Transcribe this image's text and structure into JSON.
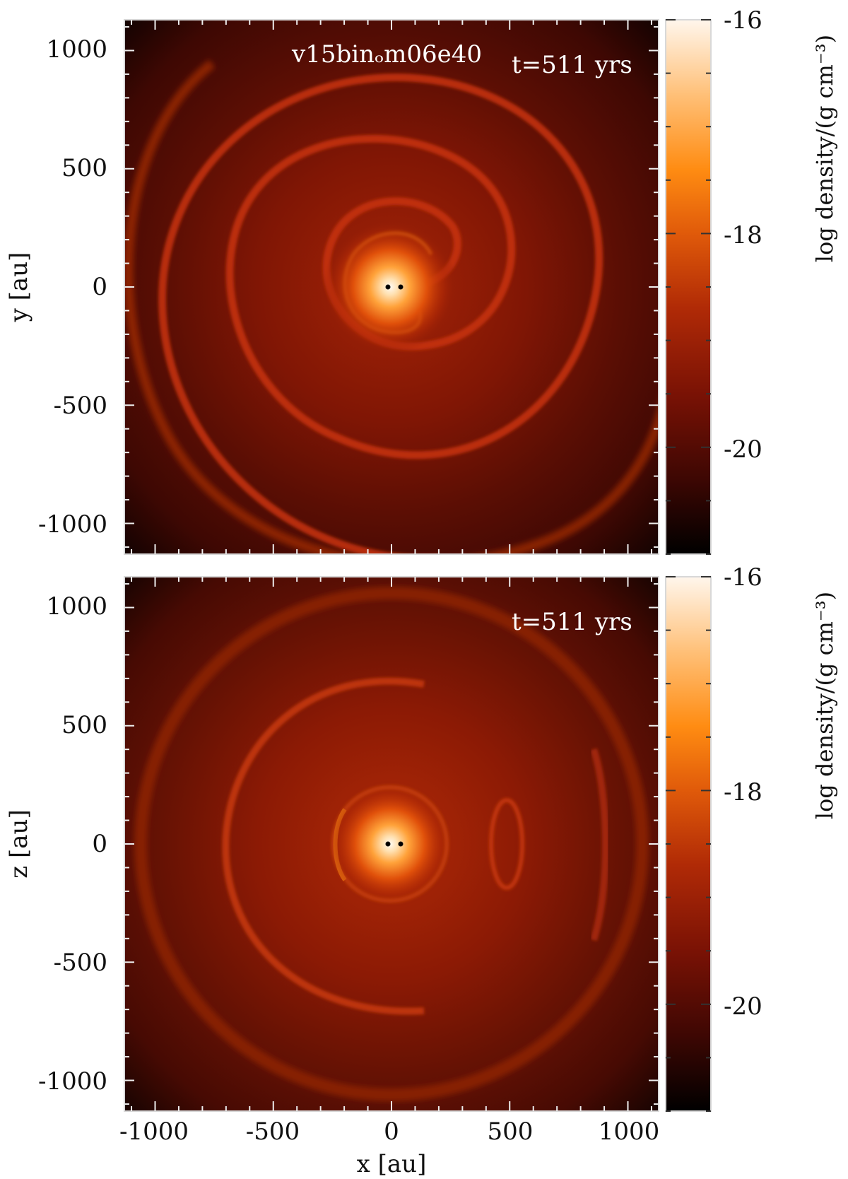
{
  "chart_data": [
    {
      "type": "heatmap",
      "plane": "x-y",
      "xlabel": "",
      "ylabel": "y [au]",
      "xlim": [
        -1130,
        1130
      ],
      "ylim": [
        -1130,
        1130
      ],
      "xticks": [],
      "yticks": [
        1000,
        500,
        0,
        -500,
        -1000
      ],
      "title": "v15binₒm06e40",
      "time_label": "t=511 yrs",
      "colorbar": {
        "label": "log density/(g cm⁻³)",
        "min": -21,
        "max": -16,
        "ticks": [
          -16,
          -18,
          -20
        ],
        "colors": [
          "#000000",
          "#3d0703",
          "#7a1205",
          "#b02a06",
          "#e05a0a",
          "#ff8c12",
          "#ffc078",
          "#fff6ec"
        ]
      },
      "stars": [
        {
          "x": -5,
          "y": 0
        },
        {
          "x": 45,
          "y": 0
        }
      ],
      "features": [
        {
          "kind": "spiral",
          "description_values_au": {
            "r_inner": 50,
            "r_outer": 1100
          }
        },
        {
          "kind": "central-core",
          "x": 0,
          "y": 0
        }
      ]
    },
    {
      "type": "heatmap",
      "plane": "x-z",
      "xlabel": "x [au]",
      "ylabel": "z [au]",
      "xlim": [
        -1130,
        1130
      ],
      "ylim": [
        -1130,
        1130
      ],
      "xticks": [
        -1000,
        -500,
        0,
        500,
        1000
      ],
      "yticks": [
        1000,
        500,
        0,
        -500,
        -1000
      ],
      "title": "",
      "time_label": "t=511 yrs",
      "colorbar": {
        "label": "log density/(g cm⁻³)",
        "min": -21,
        "max": -16,
        "ticks": [
          -16,
          -18,
          -20
        ],
        "colors": [
          "#000000",
          "#3d0703",
          "#7a1205",
          "#b02a06",
          "#e05a0a",
          "#ff8c12",
          "#ffc078",
          "#fff6ec"
        ]
      },
      "stars": [
        {
          "x": -5,
          "y": 0
        },
        {
          "x": 45,
          "y": 0
        }
      ],
      "features": [
        {
          "kind": "shell",
          "cx": 0,
          "cz": 0,
          "r": 1060
        },
        {
          "kind": "shell",
          "cx": 0,
          "cz": 0,
          "r": 700
        },
        {
          "kind": "inner-lobe",
          "cx": 0,
          "cz": 0,
          "r": 240
        },
        {
          "kind": "ring",
          "cx": 490,
          "cz": 0,
          "rx": 70,
          "rz": 190
        }
      ]
    }
  ]
}
